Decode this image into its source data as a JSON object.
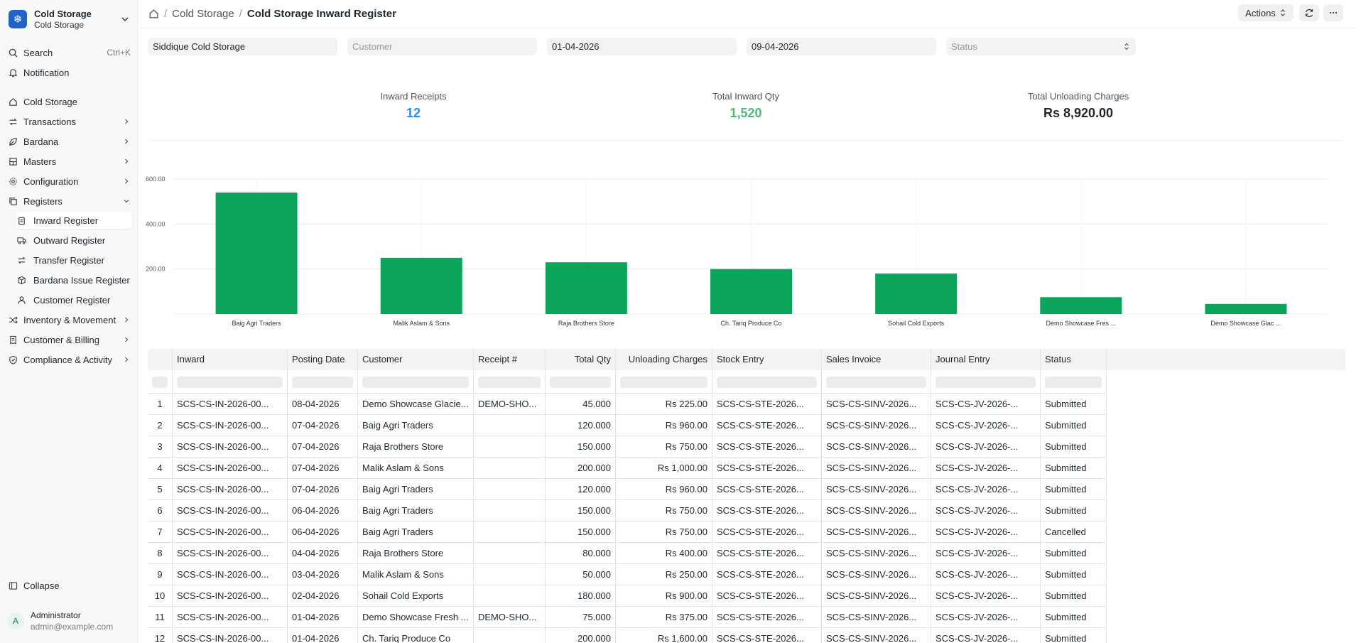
{
  "sidebar": {
    "brand_title": "Cold Storage",
    "brand_sub": "Cold Storage",
    "search_label": "Search",
    "search_shortcut": "Ctrl+K",
    "notification_label": "Notification",
    "items": [
      {
        "label": "Cold Storage",
        "icon": "home-icon"
      },
      {
        "label": "Transactions",
        "icon": "transfer-icon"
      },
      {
        "label": "Bardana",
        "icon": "leaf-icon"
      },
      {
        "label": "Masters",
        "icon": "grid-icon"
      },
      {
        "label": "Configuration",
        "icon": "gear-icon"
      },
      {
        "label": "Registers",
        "icon": "copy-icon"
      }
    ],
    "sub_items": [
      {
        "label": "Inward Register",
        "icon": "clipboard-icon"
      },
      {
        "label": "Outward Register",
        "icon": "truck-icon"
      },
      {
        "label": "Transfer Register",
        "icon": "transfer-icon"
      },
      {
        "label": "Bardana Issue Register",
        "icon": "package-icon"
      },
      {
        "label": "Customer Register",
        "icon": "users-icon"
      }
    ],
    "lower_items": [
      {
        "label": "Inventory & Movement",
        "icon": "shuffle-icon"
      },
      {
        "label": "Customer & Billing",
        "icon": "receipt-icon"
      },
      {
        "label": "Compliance & Activity",
        "icon": "shield-check-icon"
      }
    ],
    "collapse_label": "Collapse",
    "user_initial": "A",
    "user_name": "Administrator",
    "user_email": "admin@example.com"
  },
  "header": {
    "breadcrumb_parent": "Cold Storage",
    "breadcrumb_current": "Cold Storage Inward Register",
    "actions_label": "Actions"
  },
  "filters": {
    "company": "Siddique Cold Storage",
    "customer_placeholder": "Customer",
    "from_date": "01-04-2026",
    "to_date": "09-04-2026",
    "status_placeholder": "Status"
  },
  "cards": [
    {
      "label": "Inward Receipts",
      "value": "12",
      "color": "#2490ef"
    },
    {
      "label": "Total Inward Qty",
      "value": "1,520",
      "color": "#48bb74"
    },
    {
      "label": "Total Unloading Charges",
      "value": "Rs 8,920.00",
      "color": "#1f272e"
    }
  ],
  "chart_data": {
    "type": "bar",
    "categories": [
      "Baig Agri Traders",
      "Malik Aslam & Sons",
      "Raja Brothers Store",
      "Ch. Tariq Produce Co",
      "Sohail Cold Exports",
      "Demo Showcase Fres ...",
      "Demo Showcase Glac ..."
    ],
    "values": [
      540,
      250,
      230,
      200,
      180,
      75,
      45
    ],
    "yticks": [
      "200.00",
      "400.00",
      "600.00"
    ],
    "ylim": [
      0,
      600
    ],
    "color": "#0aa55a"
  },
  "table": {
    "columns": [
      "Inward",
      "Posting Date",
      "Customer",
      "Receipt #",
      "Total Qty",
      "Unloading Charges",
      "Stock Entry",
      "Sales Invoice",
      "Journal Entry",
      "Status"
    ],
    "rows": [
      [
        "1",
        "SCS-CS-IN-2026-00...",
        "08-04-2026",
        "Demo Showcase Glacie...",
        "DEMO-SHO...",
        "45.000",
        "Rs 225.00",
        "SCS-CS-STE-2026...",
        "SCS-CS-SINV-2026...",
        "SCS-CS-JV-2026-...",
        "Submitted"
      ],
      [
        "2",
        "SCS-CS-IN-2026-00...",
        "07-04-2026",
        "Baig Agri Traders",
        "",
        "120.000",
        "Rs 960.00",
        "SCS-CS-STE-2026...",
        "SCS-CS-SINV-2026...",
        "SCS-CS-JV-2026-...",
        "Submitted"
      ],
      [
        "3",
        "SCS-CS-IN-2026-00...",
        "07-04-2026",
        "Raja Brothers Store",
        "",
        "150.000",
        "Rs 750.00",
        "SCS-CS-STE-2026...",
        "SCS-CS-SINV-2026...",
        "SCS-CS-JV-2026-...",
        "Submitted"
      ],
      [
        "4",
        "SCS-CS-IN-2026-00...",
        "07-04-2026",
        "Malik Aslam & Sons",
        "",
        "200.000",
        "Rs 1,000.00",
        "SCS-CS-STE-2026...",
        "SCS-CS-SINV-2026...",
        "SCS-CS-JV-2026-...",
        "Submitted"
      ],
      [
        "5",
        "SCS-CS-IN-2026-00...",
        "07-04-2026",
        "Baig Agri Traders",
        "",
        "120.000",
        "Rs 960.00",
        "SCS-CS-STE-2026...",
        "SCS-CS-SINV-2026...",
        "SCS-CS-JV-2026-...",
        "Submitted"
      ],
      [
        "6",
        "SCS-CS-IN-2026-00...",
        "06-04-2026",
        "Baig Agri Traders",
        "",
        "150.000",
        "Rs 750.00",
        "SCS-CS-STE-2026...",
        "SCS-CS-SINV-2026...",
        "SCS-CS-JV-2026-...",
        "Submitted"
      ],
      [
        "7",
        "SCS-CS-IN-2026-00...",
        "06-04-2026",
        "Baig Agri Traders",
        "",
        "150.000",
        "Rs 750.00",
        "SCS-CS-STE-2026...",
        "SCS-CS-SINV-2026...",
        "SCS-CS-JV-2026-...",
        "Cancelled"
      ],
      [
        "8",
        "SCS-CS-IN-2026-00...",
        "04-04-2026",
        "Raja Brothers Store",
        "",
        "80.000",
        "Rs 400.00",
        "SCS-CS-STE-2026...",
        "SCS-CS-SINV-2026...",
        "SCS-CS-JV-2026-...",
        "Submitted"
      ],
      [
        "9",
        "SCS-CS-IN-2026-00...",
        "03-04-2026",
        "Malik Aslam & Sons",
        "",
        "50.000",
        "Rs 250.00",
        "SCS-CS-STE-2026...",
        "SCS-CS-SINV-2026...",
        "SCS-CS-JV-2026-...",
        "Submitted"
      ],
      [
        "10",
        "SCS-CS-IN-2026-00...",
        "02-04-2026",
        "Sohail Cold Exports",
        "",
        "180.000",
        "Rs 900.00",
        "SCS-CS-STE-2026...",
        "SCS-CS-SINV-2026...",
        "SCS-CS-JV-2026-...",
        "Submitted"
      ],
      [
        "11",
        "SCS-CS-IN-2026-00...",
        "01-04-2026",
        "Demo Showcase Fresh ...",
        "DEMO-SHO...",
        "75.000",
        "Rs 375.00",
        "SCS-CS-STE-2026...",
        "SCS-CS-SINV-2026...",
        "SCS-CS-JV-2026-...",
        "Submitted"
      ],
      [
        "12",
        "SCS-CS-IN-2026-00...",
        "01-04-2026",
        "Ch. Tariq Produce Co",
        "",
        "200.000",
        "Rs 1,600.00",
        "SCS-CS-STE-2026...",
        "SCS-CS-SINV-2026...",
        "SCS-CS-JV-2026-...",
        "Submitted"
      ]
    ]
  }
}
